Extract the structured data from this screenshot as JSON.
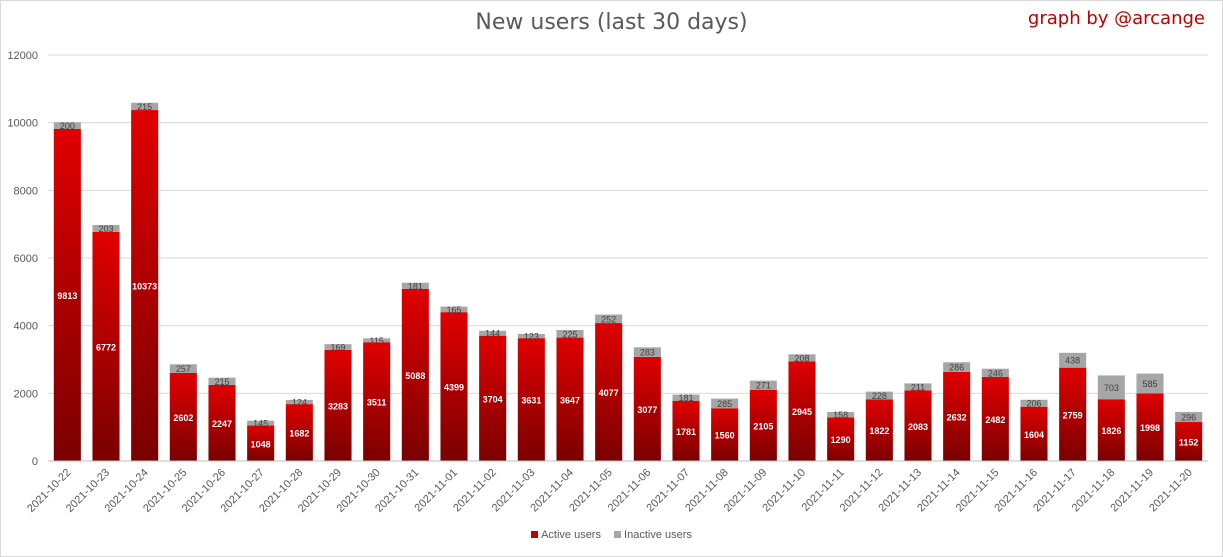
{
  "chart_data": {
    "type": "bar",
    "stacked": true,
    "title": "New users (last 30 days)",
    "credit": "graph by @arcange",
    "categories": [
      "2021-10-22",
      "2021-10-23",
      "2021-10-24",
      "2021-10-25",
      "2021-10-26",
      "2021-10-27",
      "2021-10-28",
      "2021-10-29",
      "2021-10-30",
      "2021-10-31",
      "2021-11-01",
      "2021-11-02",
      "2021-11-03",
      "2021-11-04",
      "2021-11-05",
      "2021-11-06",
      "2021-11-07",
      "2021-11-08",
      "2021-11-09",
      "2021-11-10",
      "2021-11-11",
      "2021-11-12",
      "2021-11-13",
      "2021-11-14",
      "2021-11-15",
      "2021-11-16",
      "2021-11-17",
      "2021-11-18",
      "2021-11-19",
      "2021-11-20"
    ],
    "series": [
      {
        "name": "Active users",
        "color": "#c00000",
        "values": [
          9813,
          6772,
          10373,
          2602,
          2247,
          1048,
          1682,
          3283,
          3511,
          5088,
          4399,
          3704,
          3631,
          3647,
          4077,
          3077,
          1781,
          1560,
          2105,
          2945,
          1290,
          1822,
          2083,
          2632,
          2482,
          1604,
          2759,
          1826,
          1998,
          1152
        ]
      },
      {
        "name": "Inactive users",
        "color": "#a6a6a6",
        "values": [
          200,
          203,
          215,
          257,
          215,
          145,
          124,
          169,
          115,
          181,
          165,
          144,
          123,
          225,
          252,
          283,
          181,
          285,
          271,
          208,
          158,
          228,
          211,
          286,
          246,
          206,
          438,
          703,
          585,
          296
        ]
      }
    ],
    "ylim": [
      0,
      12000
    ],
    "yticks": [
      0,
      2000,
      4000,
      6000,
      8000,
      10000,
      12000
    ],
    "grid": true,
    "legend": "bottom"
  }
}
